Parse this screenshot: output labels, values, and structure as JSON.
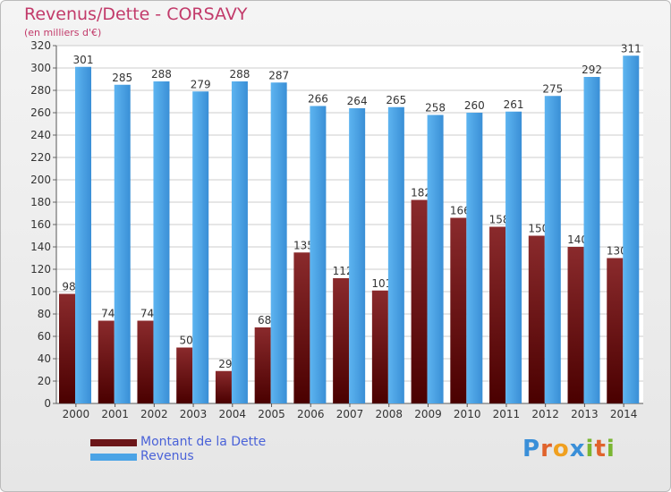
{
  "title": "Revenus/Dette - CORSAVY",
  "subtitle": "(en milliers d'€)",
  "colors": {
    "debt": "#7a1a1c",
    "revenue": "#4aa3e6",
    "grid": "#cccccc",
    "text": "#333333"
  },
  "legend": [
    {
      "label": "Montant de la Dette",
      "color": "#6b1518"
    },
    {
      "label": "Revenus",
      "color": "#4aa3e6"
    }
  ],
  "logo": {
    "text": "Proxiti",
    "letters": [
      "P",
      "r",
      "o",
      "x",
      "i",
      "t",
      "i"
    ],
    "colors": [
      "#3a8fd8",
      "#e0632c",
      "#f0a020",
      "#3a8fd8",
      "#7ab632",
      "#e0632c",
      "#7ab632"
    ]
  },
  "chart_data": {
    "type": "bar",
    "categories": [
      "2000",
      "2001",
      "2002",
      "2003",
      "2004",
      "2005",
      "2006",
      "2007",
      "2008",
      "2009",
      "2010",
      "2011",
      "2012",
      "2013",
      "2014"
    ],
    "series": [
      {
        "name": "Montant de la Dette",
        "values": [
          98,
          74,
          74,
          50,
          29,
          68,
          135,
          112,
          101,
          182,
          166,
          158,
          150,
          140,
          130
        ]
      },
      {
        "name": "Revenus",
        "values": [
          301,
          285,
          288,
          279,
          288,
          287,
          266,
          264,
          265,
          258,
          260,
          261,
          275,
          292,
          311
        ]
      }
    ],
    "ylim": [
      0,
      320
    ],
    "yticks": [
      0,
      20,
      40,
      60,
      80,
      100,
      120,
      140,
      160,
      180,
      200,
      220,
      240,
      260,
      280,
      300,
      320
    ],
    "grid": true,
    "legend_position": "bottom-left"
  }
}
